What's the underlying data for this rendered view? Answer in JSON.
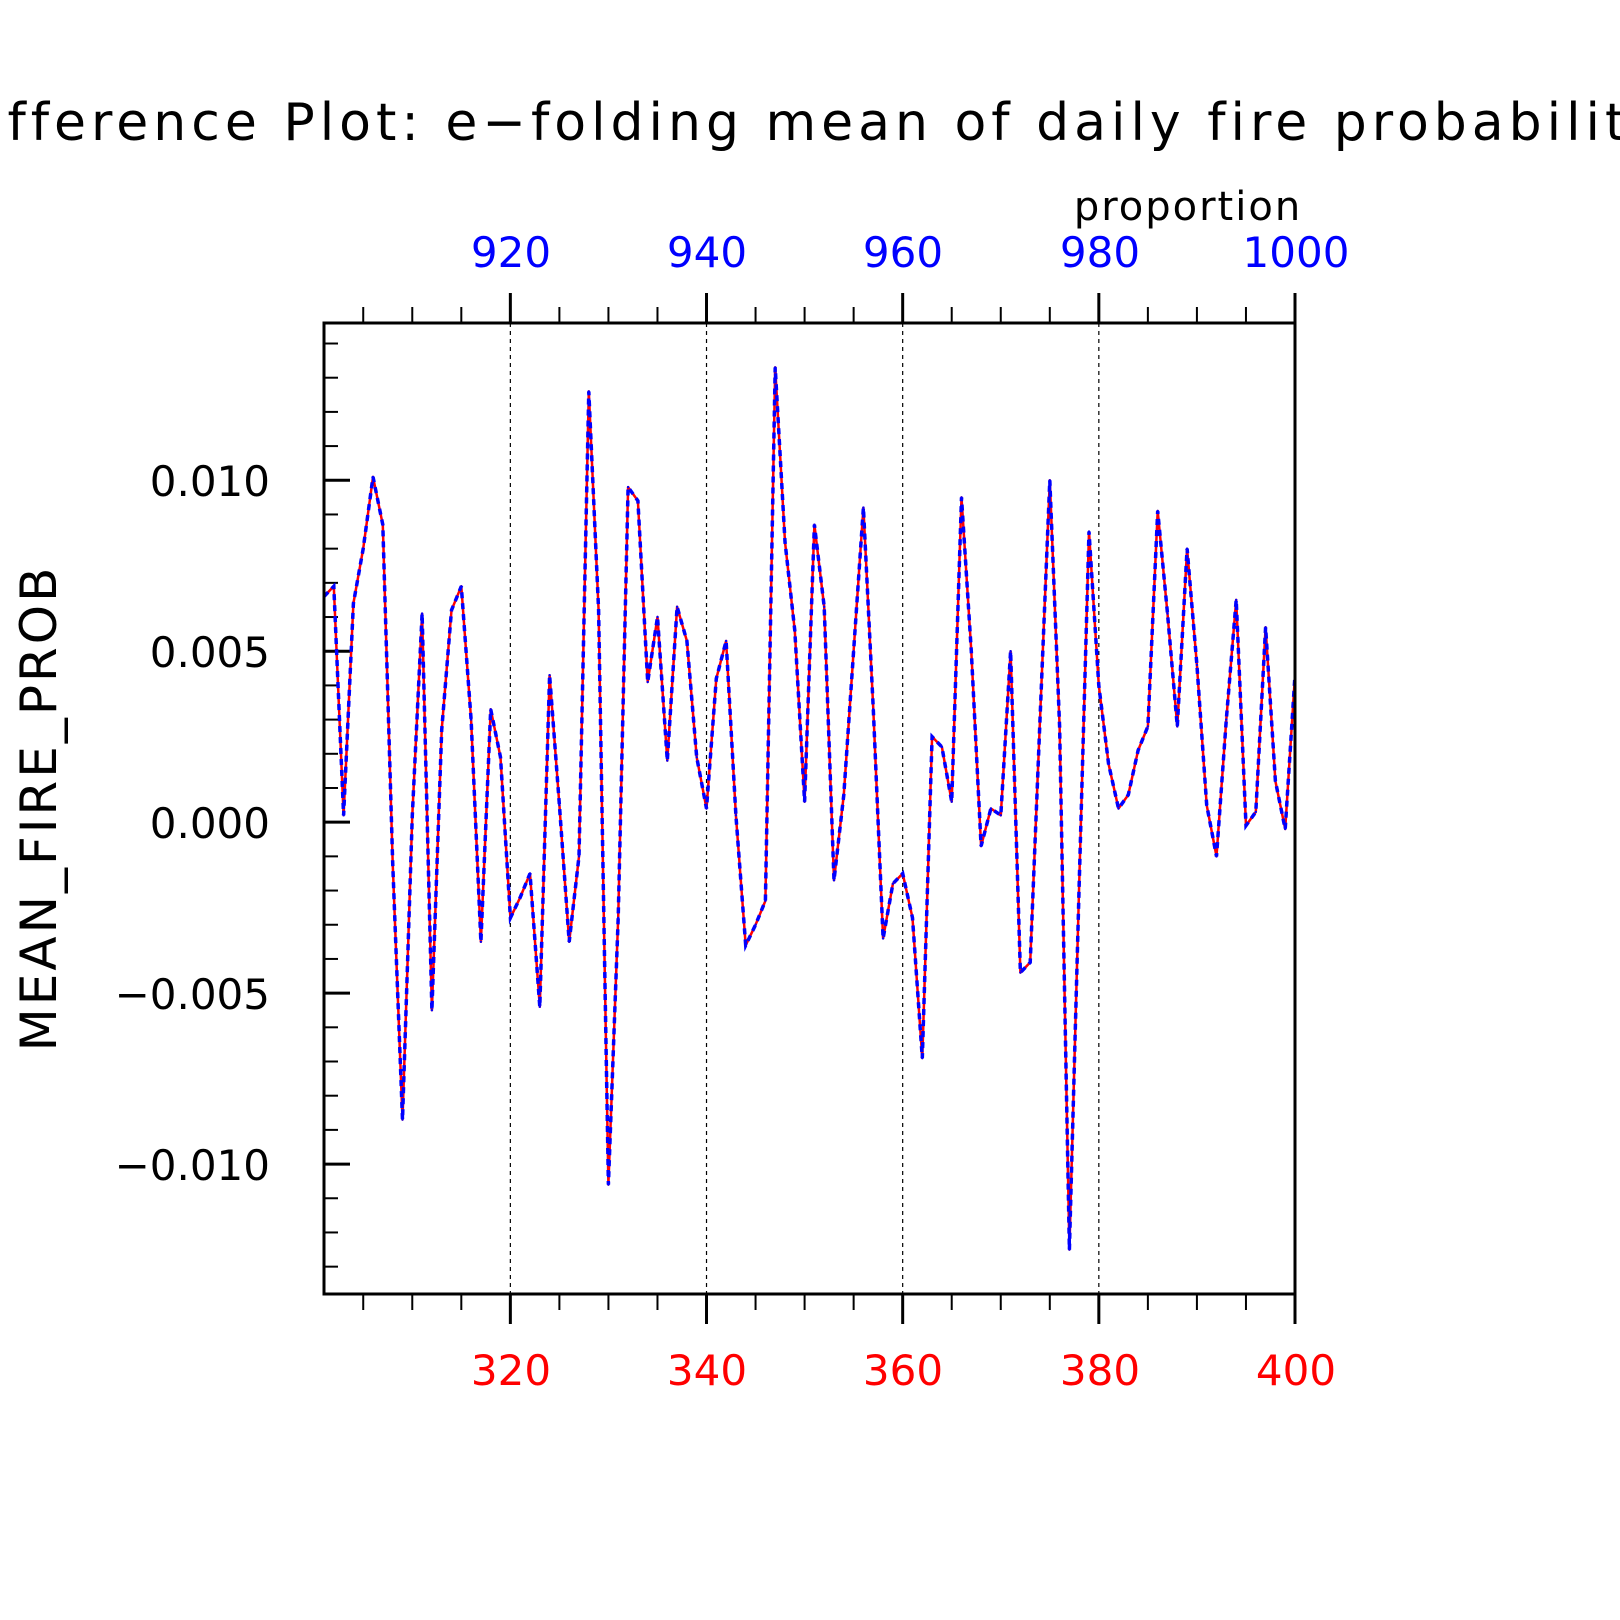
{
  "chart_data": {
    "type": "line",
    "title": "ifference Plot: e−folding mean of daily fire probabilit",
    "ylabel": "MEAN_FIRE_PROB",
    "top_axis_label": "proportion",
    "xlim_bottom": [
      301,
      400
    ],
    "xlim_top": [
      901,
      1000
    ],
    "ylim": [
      -0.0138,
      0.0146
    ],
    "bottom_ticks": [
      "320",
      "340",
      "360",
      "380",
      "400"
    ],
    "top_ticks": [
      "920",
      "940",
      "960",
      "980",
      "1000"
    ],
    "y_ticks": [
      "0.010",
      "0.005",
      "0.000",
      "−0.005",
      "−0.010"
    ],
    "grid": "vertical dashed at major x ticks",
    "colors": {
      "bottom_axis": "#ff0000",
      "top_axis": "#0000ff",
      "line_solid": "#ff0000",
      "line_dashed": "#0000ff",
      "axes": "#000000"
    },
    "series": [
      {
        "x": [
          301,
          302,
          303,
          304,
          305,
          306,
          307,
          308,
          309,
          310,
          311,
          312,
          313,
          314,
          315,
          316,
          317,
          318,
          319,
          320,
          321,
          322,
          323,
          324,
          325,
          326,
          327,
          328,
          329,
          330,
          331,
          332,
          333,
          334,
          335,
          336,
          337,
          338,
          339,
          340,
          341,
          342,
          343,
          344,
          345,
          346,
          347,
          348,
          349,
          350,
          351,
          352,
          353,
          354,
          355,
          356,
          357,
          358,
          359,
          360,
          361,
          362,
          363,
          364,
          365,
          366,
          367,
          368,
          369,
          370,
          371,
          372,
          373,
          374,
          375,
          376,
          377,
          378,
          379,
          380,
          381,
          382,
          383,
          384,
          385,
          386,
          387,
          388,
          389,
          390,
          391,
          392,
          393,
          394,
          395,
          396,
          397,
          398,
          399,
          400
        ],
        "values": [
          0.0066,
          0.0069,
          0.0002,
          0.0064,
          0.008,
          0.0101,
          0.0087,
          -0.0012,
          -0.0087,
          0.0002,
          0.0061,
          -0.0055,
          0.0027,
          0.0062,
          0.0069,
          0.003,
          -0.0035,
          0.0033,
          0.0019,
          -0.0028,
          -0.0022,
          -0.0015,
          -0.0054,
          0.0043,
          0.0005,
          -0.0035,
          -0.001,
          0.0126,
          0.0062,
          -0.0106,
          -0.0028,
          0.0098,
          0.0094,
          0.0041,
          0.006,
          0.0018,
          0.0063,
          0.0053,
          0.0019,
          0.0004,
          0.0042,
          0.0053,
          0.0002,
          -0.0036,
          -0.003,
          -0.0023,
          0.0133,
          0.0082,
          0.0056,
          0.0006,
          0.0087,
          0.0063,
          -0.0017,
          0.0008,
          0.005,
          0.0092,
          0.0033,
          -0.0034,
          -0.0018,
          -0.0015,
          -0.0028,
          -0.0069,
          0.0025,
          0.0022,
          0.0006,
          0.0095,
          0.005,
          -0.0007,
          0.0004,
          0.0002,
          0.005,
          -0.0044,
          -0.0041,
          0.003,
          0.01,
          0.0028,
          -0.0125,
          -0.0018,
          0.0085,
          0.004,
          0.0017,
          0.0004,
          0.0008,
          0.0021,
          0.0028,
          0.0091,
          0.0061,
          0.0028,
          0.008,
          0.0046,
          0.0005,
          -0.001,
          0.003,
          0.0065,
          -0.0001,
          0.0003,
          0.0057,
          0.0012,
          -0.0002,
          0.0043
        ]
      }
    ]
  }
}
